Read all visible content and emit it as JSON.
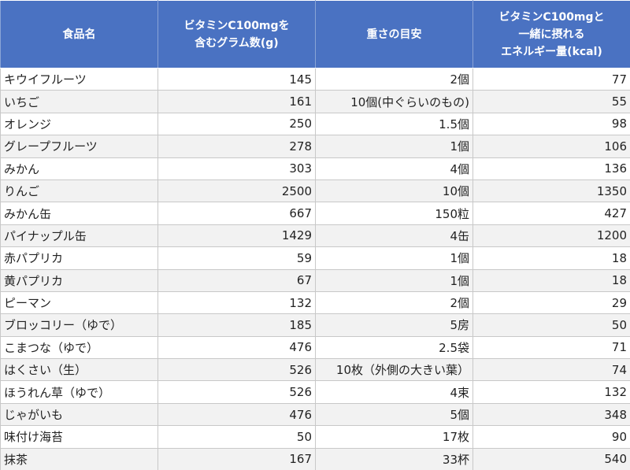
{
  "table": {
    "headers": [
      [
        "食品名"
      ],
      [
        "ビタミンC100mgを",
        "含むグラム数(g)"
      ],
      [
        "重さの目安"
      ],
      [
        "ビタミンC100mgと",
        "一緒に摂れる",
        "エネルギー量(kcal)"
      ]
    ],
    "rows": [
      [
        "キウイフルーツ",
        145,
        "2個",
        77
      ],
      [
        "いちご",
        161,
        "10個(中ぐらいのもの)",
        55
      ],
      [
        "オレンジ",
        250,
        "1.5個",
        98
      ],
      [
        "グレープフルーツ",
        278,
        "1個",
        106
      ],
      [
        "みかん",
        303,
        "4個",
        136
      ],
      [
        "りんご",
        2500,
        "10個",
        1350
      ],
      [
        "みかん缶",
        667,
        "150粒",
        427
      ],
      [
        "パイナップル缶",
        1429,
        "4缶",
        1200
      ],
      [
        "赤パプリカ",
        59,
        "1個",
        18
      ],
      [
        "黄パプリカ",
        67,
        "1個",
        18
      ],
      [
        "ピーマン",
        132,
        "2個",
        29
      ],
      [
        "ブロッコリー（ゆで）",
        185,
        "5房",
        50
      ],
      [
        "こまつな（ゆで）",
        476,
        "2.5袋",
        71
      ],
      [
        "はくさい（生）",
        526,
        "10枚（外側の大きい葉）",
        74
      ],
      [
        "ほうれん草（ゆで）",
        526,
        "4束",
        132
      ],
      [
        "じゃがいも",
        476,
        "5個",
        348
      ],
      [
        "味付け海苔",
        50,
        "17枚",
        90
      ],
      [
        "抹茶",
        167,
        "33杯",
        540
      ]
    ]
  }
}
